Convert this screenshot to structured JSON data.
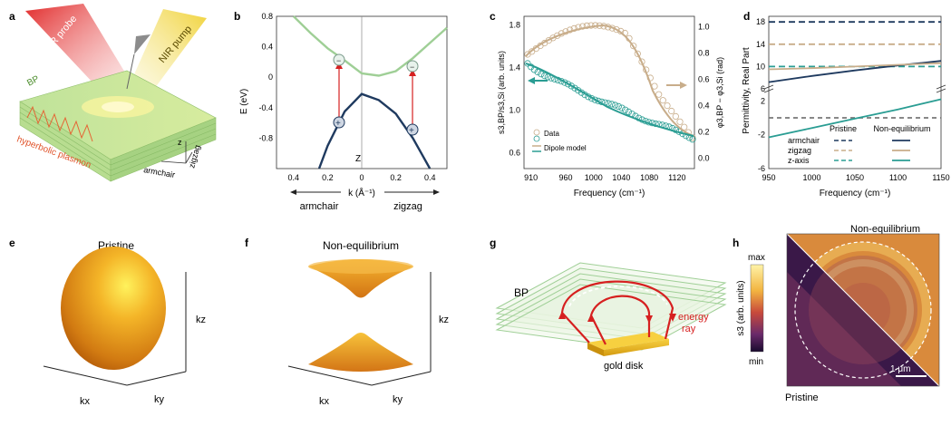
{
  "panels": {
    "a": {
      "letter": "a",
      "labels": {
        "mir": "MIR probe",
        "nir": "NIR pump",
        "bp": "BP",
        "plasmon": "hyperbolic plasmon",
        "z": "z",
        "zigzag": "zigzag",
        "armchair": "armchair"
      }
    },
    "b": {
      "letter": "b",
      "ylabel": "E (eV)",
      "xlabel": "k (Å⁻¹)",
      "left_dir": "armchair",
      "right_dir": "zigzag",
      "center_label": "Z",
      "y_ticks": [
        "0.8",
        "0.4",
        "0",
        "-0.4",
        "-0.8"
      ],
      "x_ticks": [
        "0.4",
        "0.2",
        "0",
        "0.2",
        "0.4"
      ]
    },
    "c": {
      "letter": "c",
      "ylabel_left": "s3,BP/s3,Si (arb. units)",
      "ylabel_right": "φ3,BP − φ3,Si (rad)",
      "xlabel": "Frequency (cm⁻¹)",
      "y_ticks_left": [
        "1.8",
        "1.4",
        "1.0",
        "0.6"
      ],
      "y_ticks_right": [
        "1.0",
        "0.8",
        "0.6",
        "0.4",
        "0.2",
        "0.0"
      ],
      "x_ticks": [
        "910",
        "960",
        "1000",
        "1040",
        "1080",
        "1120"
      ],
      "legend_data": "Data",
      "legend_model": "Dipole model"
    },
    "d": {
      "letter": "d",
      "ylabel": "Permittivity, Real Part",
      "xlabel": "Frequency (cm⁻¹)",
      "y_ticks": [
        "18",
        "14",
        "10",
        "6",
        "2",
        "-2",
        "-6"
      ],
      "x_ticks": [
        "950",
        "1000",
        "1050",
        "1100",
        "1150"
      ],
      "legend": {
        "pristine": "Pristine",
        "noneq": "Non-equilibrium",
        "rows": [
          "armchair",
          "zigzag",
          "z-axis"
        ]
      }
    },
    "e": {
      "letter": "e",
      "title": "Pristine",
      "kx": "kx",
      "ky": "ky",
      "kz": "kz"
    },
    "f": {
      "letter": "f",
      "title": "Non-equilibrium",
      "kx": "kx",
      "ky": "ky",
      "kz": "kz"
    },
    "g": {
      "letter": "g",
      "bp": "BP",
      "energy": "energy",
      "ray": "ray",
      "disk": "gold disk"
    },
    "h": {
      "letter": "h",
      "title": "Non-equilibrium",
      "bottom": "Pristine",
      "scale": "1 μm",
      "colorbar_max": "max",
      "colorbar_min": "min",
      "colorbar_label": "s3 (arb. units)"
    }
  },
  "colors": {
    "teal": "#2a9d93",
    "tan": "#c8ad8a",
    "navy": "#1f3a5f",
    "red": "#d62020",
    "gold": "#e0a020",
    "green_light": "#9fcf96"
  },
  "chart_data": [
    {
      "panel": "b",
      "type": "line",
      "xlabel": "k (Å⁻¹)",
      "ylabel": "E (eV)",
      "xlim": [
        -0.5,
        0.5
      ],
      "ylim": [
        -1.2,
        0.8
      ],
      "series": [
        {
          "x": [
            -0.4,
            -0.3,
            -0.2,
            -0.1,
            0,
            0.1,
            0.2,
            0.3,
            0.4,
            0.5
          ],
          "y": [
            0.8,
            0.58,
            0.38,
            0.22,
            0.05,
            0.02,
            0.08,
            0.25,
            0.45,
            0.65
          ]
        },
        {
          "x": [
            -0.25,
            -0.2,
            -0.1,
            0,
            0.1,
            0.2,
            0.3,
            0.35,
            0.4
          ],
          "y": [
            -1.2,
            -0.9,
            -0.45,
            -0.22,
            -0.3,
            -0.48,
            -0.8,
            -1.0,
            -1.2
          ]
        }
      ]
    },
    {
      "panel": "d",
      "type": "line",
      "xlabel": "Frequency (cm⁻¹)",
      "ylabel": "Permittivity, Real Part",
      "xlim": [
        950,
        1150
      ],
      "series": [
        {
          "x": [
            950,
            1150
          ],
          "y": [
            18,
            18
          ]
        },
        {
          "x": [
            950,
            1150
          ],
          "y": [
            14,
            14
          ]
        },
        {
          "x": [
            950,
            1150
          ],
          "y": [
            10,
            10
          ]
        },
        {
          "x": [
            950,
            1150
          ],
          "y": [
            0,
            0
          ]
        },
        {
          "x": [
            950,
            1000,
            1050,
            1100,
            1150
          ],
          "y": [
            7.2,
            8.3,
            9.3,
            10.2,
            11
          ]
        },
        {
          "x": [
            950,
            1000,
            1050,
            1100,
            1150
          ],
          "y": [
            9.5,
            9.7,
            10.0,
            10.3,
            10.6
          ]
        },
        {
          "x": [
            950,
            1000,
            1050,
            1100,
            1150
          ],
          "y": [
            -2.3,
            -1.2,
            -0.1,
            1.0,
            2.2
          ]
        }
      ]
    }
  ]
}
